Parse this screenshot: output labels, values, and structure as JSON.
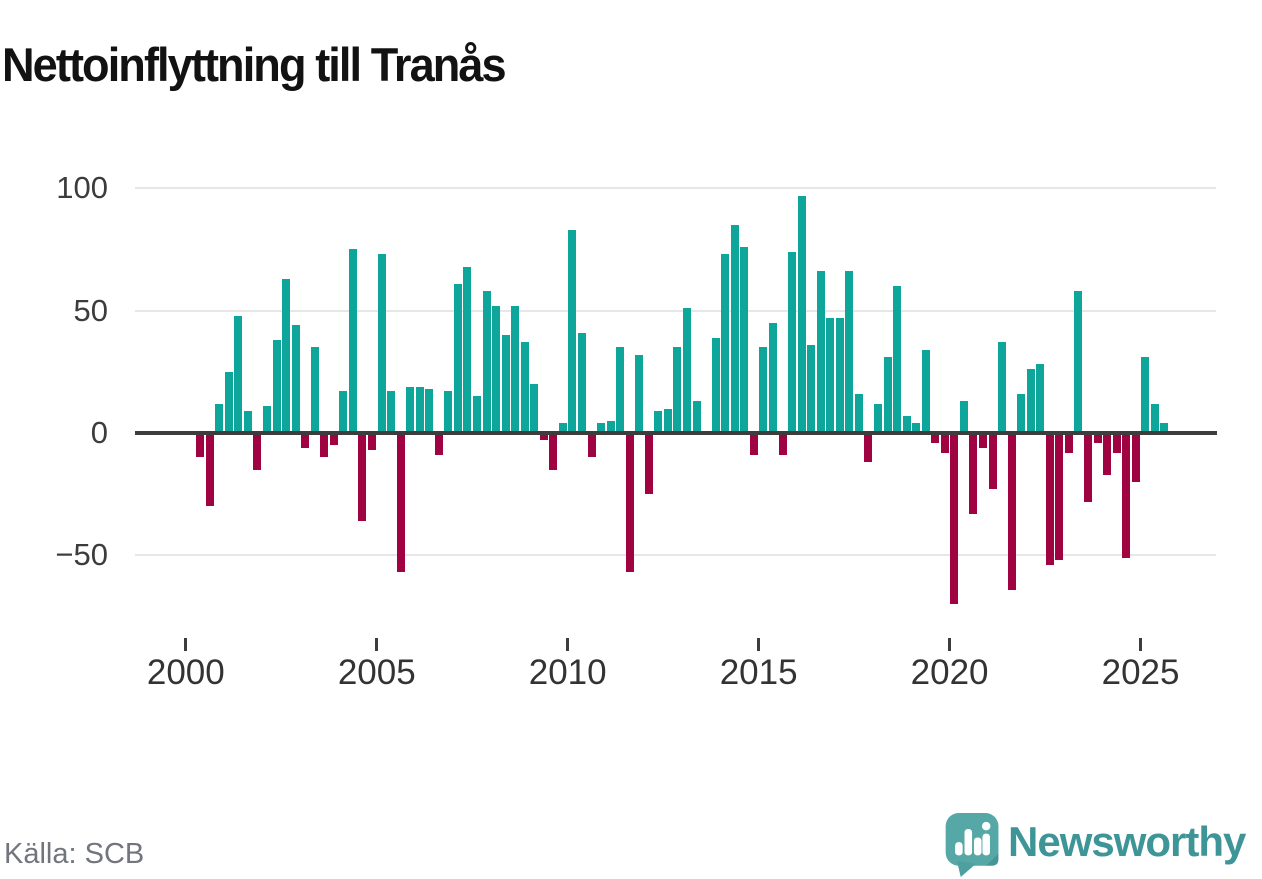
{
  "header": {
    "title": "Nettoinflyttning till Tranås"
  },
  "footer": {
    "source": "Källa: SCB",
    "brand": "Newsworthy"
  },
  "colors": {
    "positive": "#0ea59a",
    "negative": "#a00341",
    "grid": "#e7e7e7",
    "zero_line": "#3d3d3d",
    "axis_text": "#3c3c3c",
    "title_text": "#121212",
    "source_text": "#72757e",
    "brand_teal": "#3e9597",
    "icon_teal": "#55a8a6",
    "icon_teal_dark": "#469699"
  },
  "chart_data": {
    "type": "bar",
    "title": "Nettoinflyttning till Tranås",
    "frequency": "quarterly",
    "start_period": "2000Q1",
    "end_period": "2025Q3",
    "grid": "horizontal-only",
    "legend": "none",
    "xlabel": "",
    "ylabel": "",
    "ylim": [
      -75,
      105
    ],
    "y_ticks": [
      100,
      50,
      0,
      -50
    ],
    "y_tick_labels": [
      "100",
      "50",
      "0",
      "−50"
    ],
    "x_tick_labels": [
      "2000",
      "2005",
      "2010",
      "2015",
      "2020",
      "2025"
    ],
    "x_tick_years": [
      2000,
      2005,
      2010,
      2015,
      2020,
      2025
    ],
    "values": [
      1,
      -10,
      -30,
      12,
      25,
      48,
      9,
      -15,
      11,
      38,
      63,
      44,
      -6,
      35,
      -10,
      -5,
      17,
      75,
      -36,
      -7,
      73,
      17,
      -57,
      19,
      19,
      18,
      -9,
      17,
      61,
      68,
      15,
      58,
      52,
      40,
      52,
      37,
      20,
      -3,
      -15,
      4,
      83,
      41,
      -10,
      4,
      5,
      35,
      -57,
      32,
      -25,
      9,
      10,
      35,
      51,
      13,
      1,
      39,
      73,
      85,
      76,
      -9,
      35,
      45,
      -9,
      74,
      97,
      36,
      66,
      47,
      47,
      66,
      16,
      -12,
      12,
      31,
      60,
      7,
      4,
      34,
      -4,
      -8,
      -70,
      13,
      -33,
      -6,
      -23,
      37,
      -64,
      16,
      26,
      28,
      -54,
      -52,
      -8,
      58,
      -28,
      -4,
      -17,
      -8,
      -51,
      -20,
      31,
      12,
      4
    ]
  }
}
